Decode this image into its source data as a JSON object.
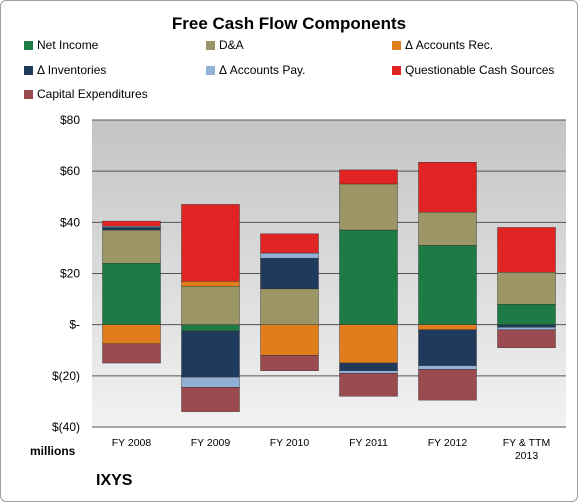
{
  "chart_data": {
    "type": "bar",
    "stacked": true,
    "title": "Free Cash Flow Components",
    "unit_label": "millions",
    "company": "IXYS",
    "categories": [
      "FY 2008",
      "FY 2009",
      "FY 2010",
      "FY 2011",
      "FY 2012",
      "FY & TTM 2013"
    ],
    "ylim": [
      -40,
      80
    ],
    "yticks": [
      80,
      60,
      40,
      20,
      0,
      -20,
      -40
    ],
    "ytick_labels": [
      "$80",
      "$60",
      "$40",
      "$20",
      "$-",
      "$(20)",
      "$(40)"
    ],
    "grid": true,
    "legend_position": "top",
    "series": [
      {
        "name": "Net Income",
        "color": "#1E7B45",
        "values": [
          24,
          -2.5,
          0,
          37,
          31,
          8
        ]
      },
      {
        "name": "D&A",
        "color": "#9C9565",
        "values": [
          13,
          15,
          14,
          18,
          13,
          12.5
        ]
      },
      {
        "name": "Δ Accounts Rec.",
        "color": "#E07D1C",
        "values": [
          -7.5,
          2,
          -12,
          -15,
          -2,
          0
        ]
      },
      {
        "name": "Δ Inventories",
        "color": "#203A5E",
        "values": [
          1,
          -18,
          12,
          -3,
          -14,
          -1
        ]
      },
      {
        "name": "Δ Accounts Pay.",
        "color": "#93B1D6",
        "values": [
          0.5,
          -4,
          2,
          -1,
          -1.5,
          -1
        ]
      },
      {
        "name": "Questionable Cash Sources",
        "color": "#E02424",
        "values": [
          2,
          30,
          7.5,
          5.5,
          19.5,
          17.5
        ]
      },
      {
        "name": "Capital Expenditures",
        "color": "#9B4A50",
        "values": [
          -7.5,
          -9.5,
          -6,
          -9,
          -12,
          -7
        ]
      }
    ]
  }
}
